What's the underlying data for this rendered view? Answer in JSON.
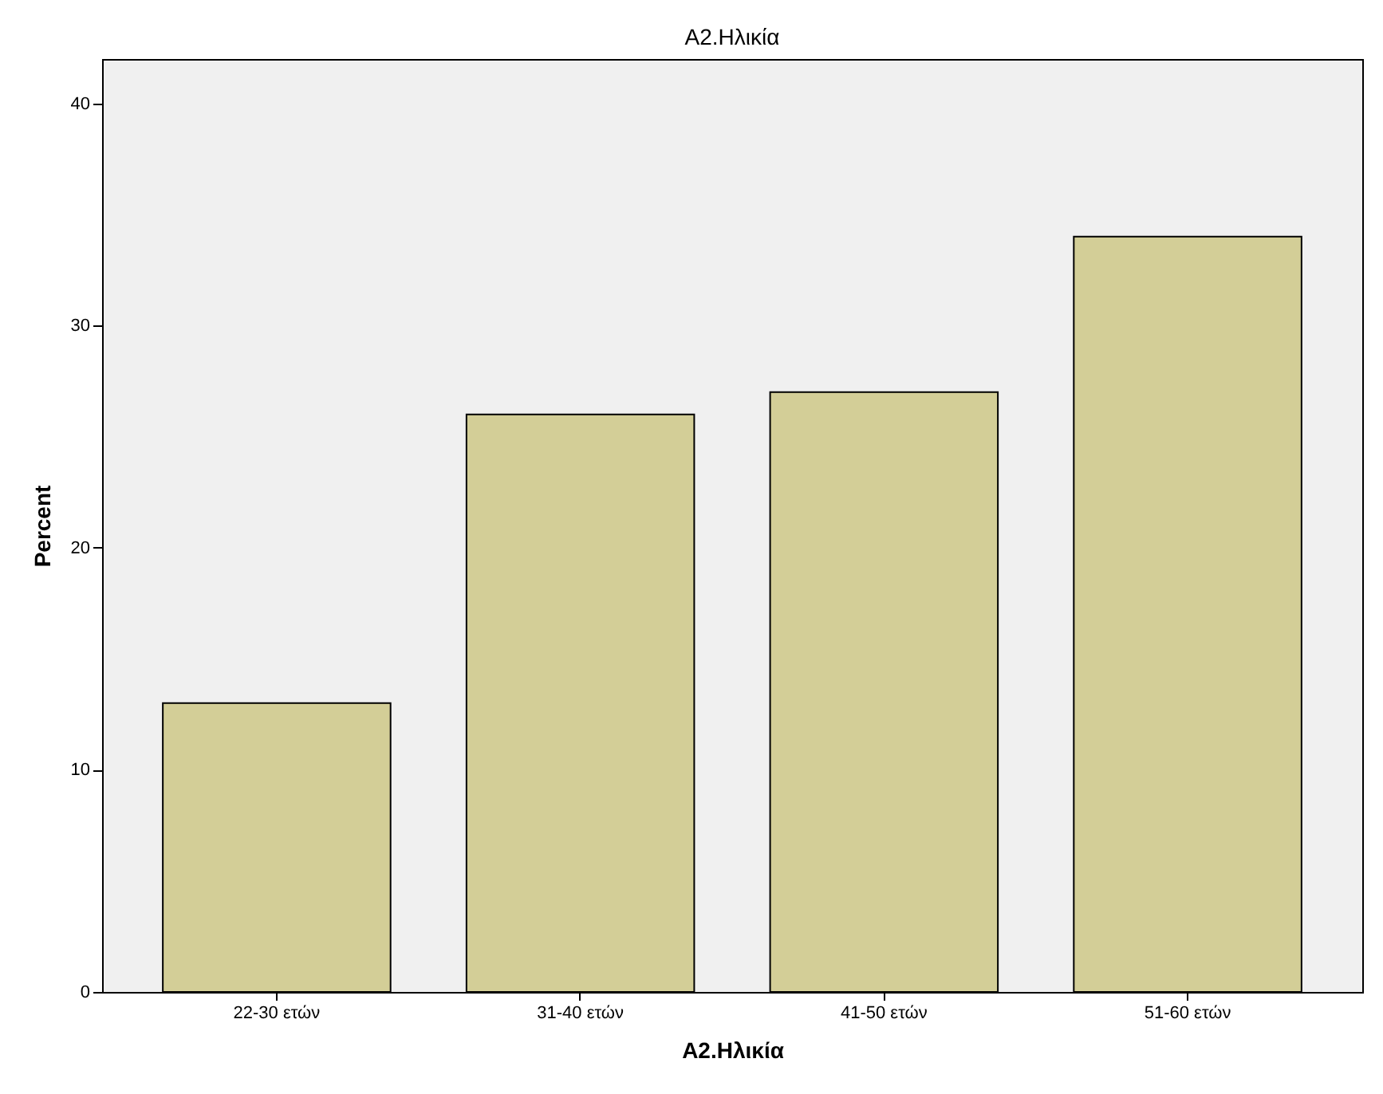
{
  "chart_data": {
    "type": "bar",
    "title": "A2.Ηλικία",
    "xlabel": "A2.Ηλικία",
    "ylabel": "Percent",
    "categories": [
      "22-30 ετών",
      "31-40 ετών",
      "41-50 ετών",
      "51-60 ετών"
    ],
    "values": [
      13,
      26,
      27,
      34
    ],
    "color": "#d3ce97",
    "ylim": [
      0,
      42
    ],
    "yticks": [
      0,
      10,
      20,
      30,
      40
    ],
    "grid": false
  }
}
